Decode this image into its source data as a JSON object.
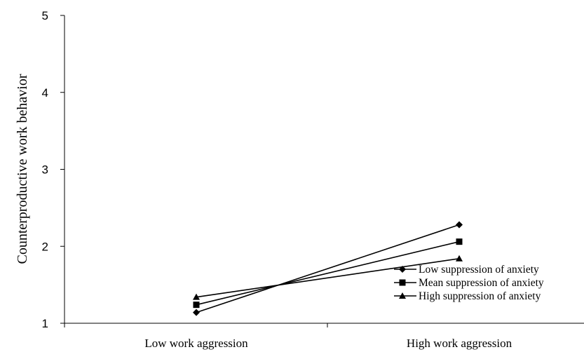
{
  "chart_data": {
    "type": "line",
    "title": "",
    "xlabel": "",
    "ylabel": "Counterproductive  work behavior",
    "categories": [
      "Low work aggression",
      "High work aggression"
    ],
    "ylim": [
      1,
      5
    ],
    "yticks": [
      "1",
      "2",
      "3",
      "4",
      "5"
    ],
    "grid": false,
    "legend_position": "bottom-right",
    "series": [
      {
        "name": "Low suppression of anxiety",
        "marker": "diamond",
        "values": [
          1.14,
          2.28
        ]
      },
      {
        "name": "Mean suppression of anxiety",
        "marker": "square",
        "values": [
          1.24,
          2.06
        ]
      },
      {
        "name": "High suppression of anxiety",
        "marker": "triangle",
        "values": [
          1.34,
          1.84
        ]
      }
    ],
    "line_color": "#000000"
  }
}
